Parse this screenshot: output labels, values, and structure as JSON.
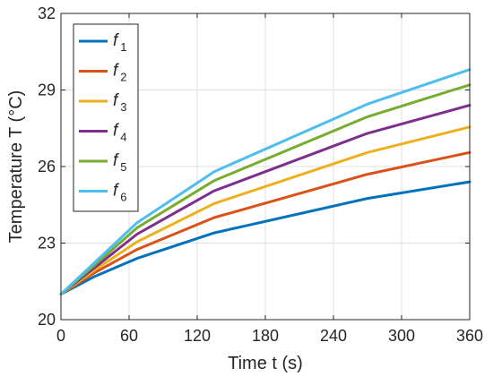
{
  "chart_data": {
    "type": "line",
    "xlabel": "Time  t (s)",
    "ylabel": "Temperature  T (°C)",
    "xlim": [
      0,
      360
    ],
    "ylim": [
      20,
      32
    ],
    "xticks": [
      0,
      60,
      120,
      180,
      240,
      300,
      360
    ],
    "yticks": [
      20,
      23,
      26,
      29,
      32
    ],
    "grid": true,
    "legend_position": "top-left",
    "x": [
      0,
      30,
      67,
      135,
      270,
      360
    ],
    "series": [
      {
        "name": "f1",
        "label_main": "f",
        "label_sub": "1",
        "color": "#0072BD",
        "values": [
          21.0,
          21.7,
          22.4,
          23.4,
          24.75,
          25.4
        ]
      },
      {
        "name": "f2",
        "label_main": "f",
        "label_sub": "2",
        "color": "#D95319",
        "values": [
          21.0,
          21.85,
          22.75,
          24.0,
          25.7,
          26.55
        ]
      },
      {
        "name": "f3",
        "label_main": "f",
        "label_sub": "3",
        "color": "#EDB120",
        "values": [
          21.0,
          21.95,
          23.05,
          24.55,
          26.55,
          27.55
        ]
      },
      {
        "name": "f4",
        "label_main": "f",
        "label_sub": "4",
        "color": "#7E2F8E",
        "values": [
          21.0,
          22.05,
          23.35,
          25.05,
          27.3,
          28.4
        ]
      },
      {
        "name": "f5",
        "label_main": "f",
        "label_sub": "5",
        "color": "#77AC30",
        "values": [
          21.0,
          22.15,
          23.6,
          25.45,
          27.95,
          29.2
        ]
      },
      {
        "name": "f6",
        "label_main": "f",
        "label_sub": "6",
        "color": "#4DBEEE",
        "values": [
          21.0,
          22.25,
          23.8,
          25.8,
          28.45,
          29.8
        ]
      }
    ]
  }
}
